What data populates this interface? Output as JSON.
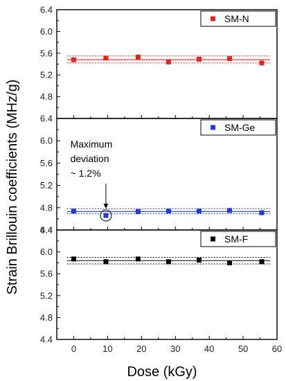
{
  "chart_data": {
    "type": "scatter",
    "layout": "three vertically stacked panels sharing x-axis",
    "xlabel": "Dose (kGy)",
    "ylabel": "Strain Brillouin coefficients (MHz/g)",
    "xlim": [
      -5,
      60
    ],
    "xticks": [
      0,
      10,
      20,
      30,
      40,
      50,
      60
    ],
    "panels": [
      {
        "name": "SM-N",
        "color": "#e8231f",
        "ylim": [
          4.4,
          6.4
        ],
        "yticks": [
          4.4,
          4.8,
          5.2,
          5.6,
          6.0,
          6.4
        ],
        "ytick_labels": [
          "",
          "4.8",
          "5.2",
          "5.6",
          "6.0",
          "6.4"
        ],
        "legend": "SM-N",
        "legend_position": "top-right",
        "x": [
          0,
          9.5,
          19,
          28,
          37,
          46,
          55.5
        ],
        "y": [
          5.48,
          5.51,
          5.53,
          5.44,
          5.49,
          5.5,
          5.42
        ],
        "mean": 5.48,
        "band": [
          5.42,
          5.55
        ]
      },
      {
        "name": "SM-Ge",
        "color": "#1f3ae8",
        "ylim": [
          4.4,
          6.4
        ],
        "yticks": [
          4.4,
          4.8,
          5.2,
          5.6,
          6.0,
          6.4
        ],
        "ytick_labels": [
          "4.4",
          "4.8",
          "5.2",
          "5.6",
          "6.0",
          "6.4"
        ],
        "legend": "SM-Ge",
        "legend_position": "top-right",
        "x": [
          0,
          9.5,
          19,
          28,
          37,
          46,
          55.5
        ],
        "y": [
          4.74,
          4.66,
          4.73,
          4.74,
          4.74,
          4.75,
          4.71
        ],
        "mean": 4.73,
        "band": [
          4.69,
          4.78
        ],
        "annotation": {
          "lines": [
            "Maximum",
            "deviation",
            "~ 1.2%"
          ],
          "point_index": 1
        }
      },
      {
        "name": "SM-F",
        "color": "#000000",
        "ylim": [
          4.4,
          6.4
        ],
        "yticks": [
          4.4,
          4.8,
          5.2,
          5.6,
          6.0,
          6.4
        ],
        "ytick_labels": [
          "4.4",
          "4.8",
          "5.2",
          "5.6",
          "6.0",
          "6.4"
        ],
        "legend": "SM-F",
        "legend_position": "top-right",
        "x": [
          0,
          9.5,
          19,
          28,
          37,
          46,
          55.5
        ],
        "y": [
          5.87,
          5.82,
          5.87,
          5.82,
          5.85,
          5.8,
          5.82
        ],
        "mean": 5.84,
        "band": [
          5.78,
          5.9
        ]
      }
    ]
  }
}
